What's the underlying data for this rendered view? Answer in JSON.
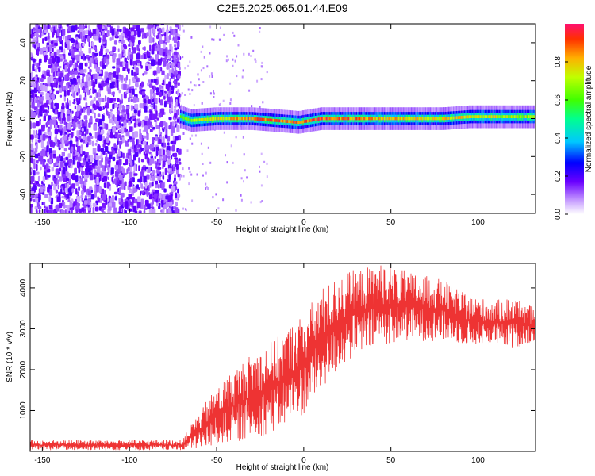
{
  "title": "C2E5.2025.065.01.44.E09",
  "chart_data": [
    {
      "type": "heatmap",
      "xlabel": "Height of straight line (km)",
      "ylabel": "Frequency (Hz)",
      "xlim": [
        -157,
        133
      ],
      "ylim": [
        -50,
        50
      ],
      "xticks": [
        -150,
        -100,
        -50,
        0,
        50,
        100
      ],
      "yticks": [
        -40,
        -20,
        0,
        20,
        40
      ],
      "colorbar": {
        "label": "Normalized spectral amplitude",
        "range": [
          0,
          1
        ],
        "ticks": [
          "0.0",
          "0.2",
          "0.4",
          "0.6",
          "0.8"
        ]
      },
      "noise_region_x": [
        -157,
        -71
      ],
      "ridge": {
        "description_points": [
          {
            "x": -71,
            "y": 1,
            "amp": 0.6
          },
          {
            "x": -65,
            "y": -1,
            "amp": 0.7
          },
          {
            "x": -50,
            "y": 0,
            "amp": 0.8
          },
          {
            "x": -30,
            "y": 0,
            "amp": 0.9
          },
          {
            "x": -3,
            "y": -2,
            "amp": 0.95
          },
          {
            "x": 10,
            "y": 0,
            "amp": 0.95
          },
          {
            "x": 40,
            "y": 0,
            "amp": 0.85
          },
          {
            "x": 80,
            "y": 0,
            "amp": 0.8
          },
          {
            "x": 95,
            "y": 1,
            "amp": 0.8
          },
          {
            "x": 133,
            "y": 1,
            "amp": 0.7
          }
        ]
      }
    },
    {
      "type": "line",
      "xlabel": "Height of straight line (km)",
      "ylabel": "SNR (10 * v/v)",
      "xlim": [
        -157,
        133
      ],
      "ylim": [
        0,
        4600
      ],
      "xticks": [
        -150,
        -100,
        -50,
        0,
        50,
        100
      ],
      "yticks": [
        1000,
        2000,
        3000,
        4000
      ],
      "series": [
        {
          "color": "#ee3333",
          "envelope": [
            {
              "x": -157,
              "low": 30,
              "high": 280
            },
            {
              "x": -70,
              "low": 30,
              "high": 280
            },
            {
              "x": -64,
              "low": 40,
              "high": 700
            },
            {
              "x": -55,
              "low": 80,
              "high": 1300
            },
            {
              "x": -45,
              "low": 200,
              "high": 1800
            },
            {
              "x": -30,
              "low": 300,
              "high": 2400
            },
            {
              "x": -15,
              "low": 500,
              "high": 2800
            },
            {
              "x": 0,
              "low": 900,
              "high": 3400
            },
            {
              "x": 10,
              "low": 1500,
              "high": 4000
            },
            {
              "x": 25,
              "low": 2200,
              "high": 4400
            },
            {
              "x": 45,
              "low": 2600,
              "high": 4600
            },
            {
              "x": 60,
              "low": 2700,
              "high": 4400
            },
            {
              "x": 80,
              "low": 2700,
              "high": 4200
            },
            {
              "x": 95,
              "low": 2600,
              "high": 3800
            },
            {
              "x": 110,
              "low": 2600,
              "high": 3700
            },
            {
              "x": 120,
              "low": 2500,
              "high": 3800
            },
            {
              "x": 133,
              "low": 2700,
              "high": 3500
            }
          ]
        }
      ]
    }
  ]
}
